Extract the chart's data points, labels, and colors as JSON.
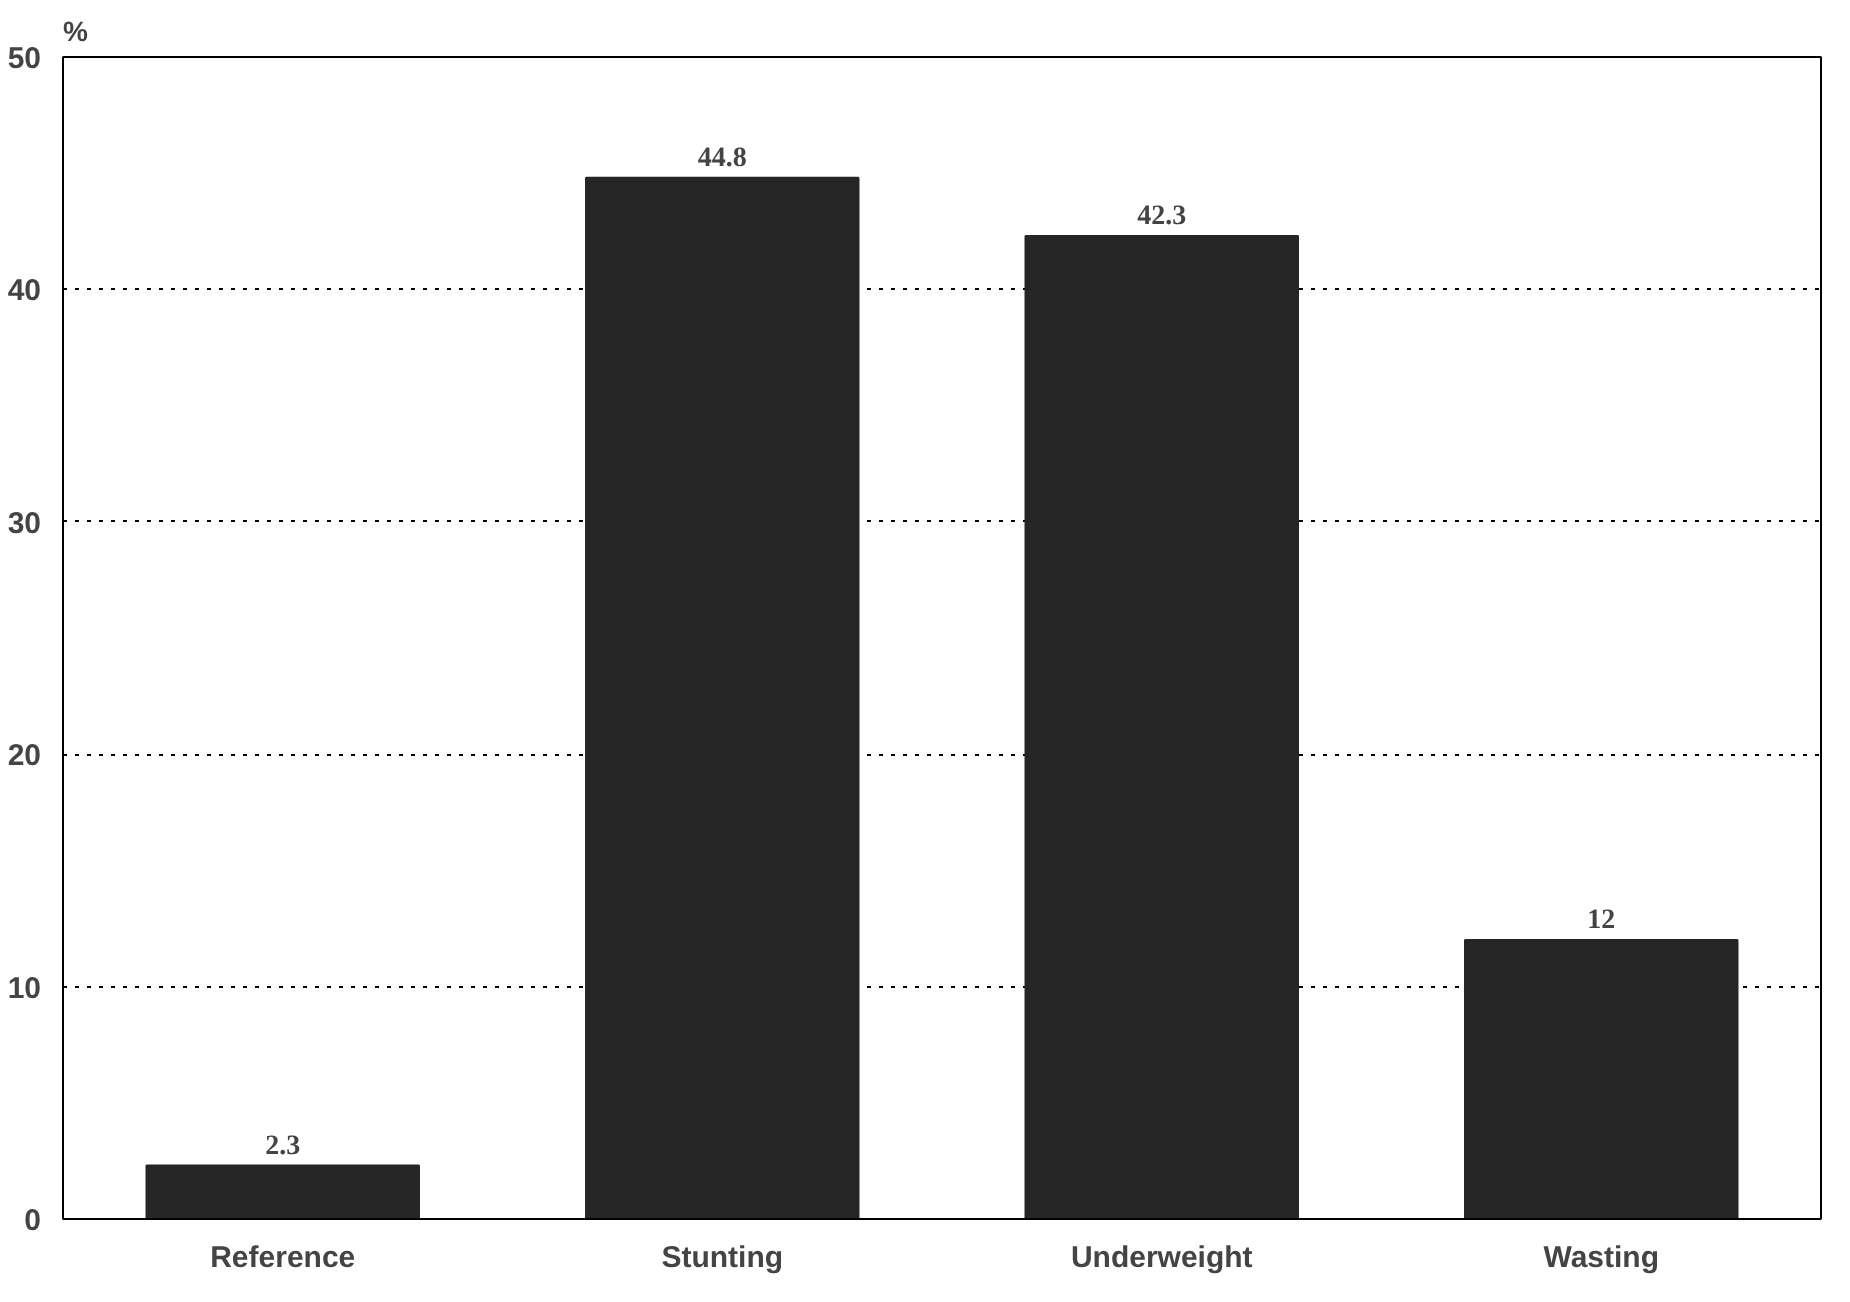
{
  "chart_data": {
    "type": "bar",
    "ylabel": "%",
    "categories": [
      "Reference",
      "Stunting",
      "Underweight",
      "Wasting"
    ],
    "values": [
      2.3,
      44.8,
      42.3,
      12
    ],
    "color": "#262626",
    "ylim": [
      0,
      50
    ],
    "yticks": [
      0,
      10,
      20,
      30,
      40,
      50
    ],
    "grid": "y",
    "line_style": "dotted",
    "data_labels": true
  }
}
